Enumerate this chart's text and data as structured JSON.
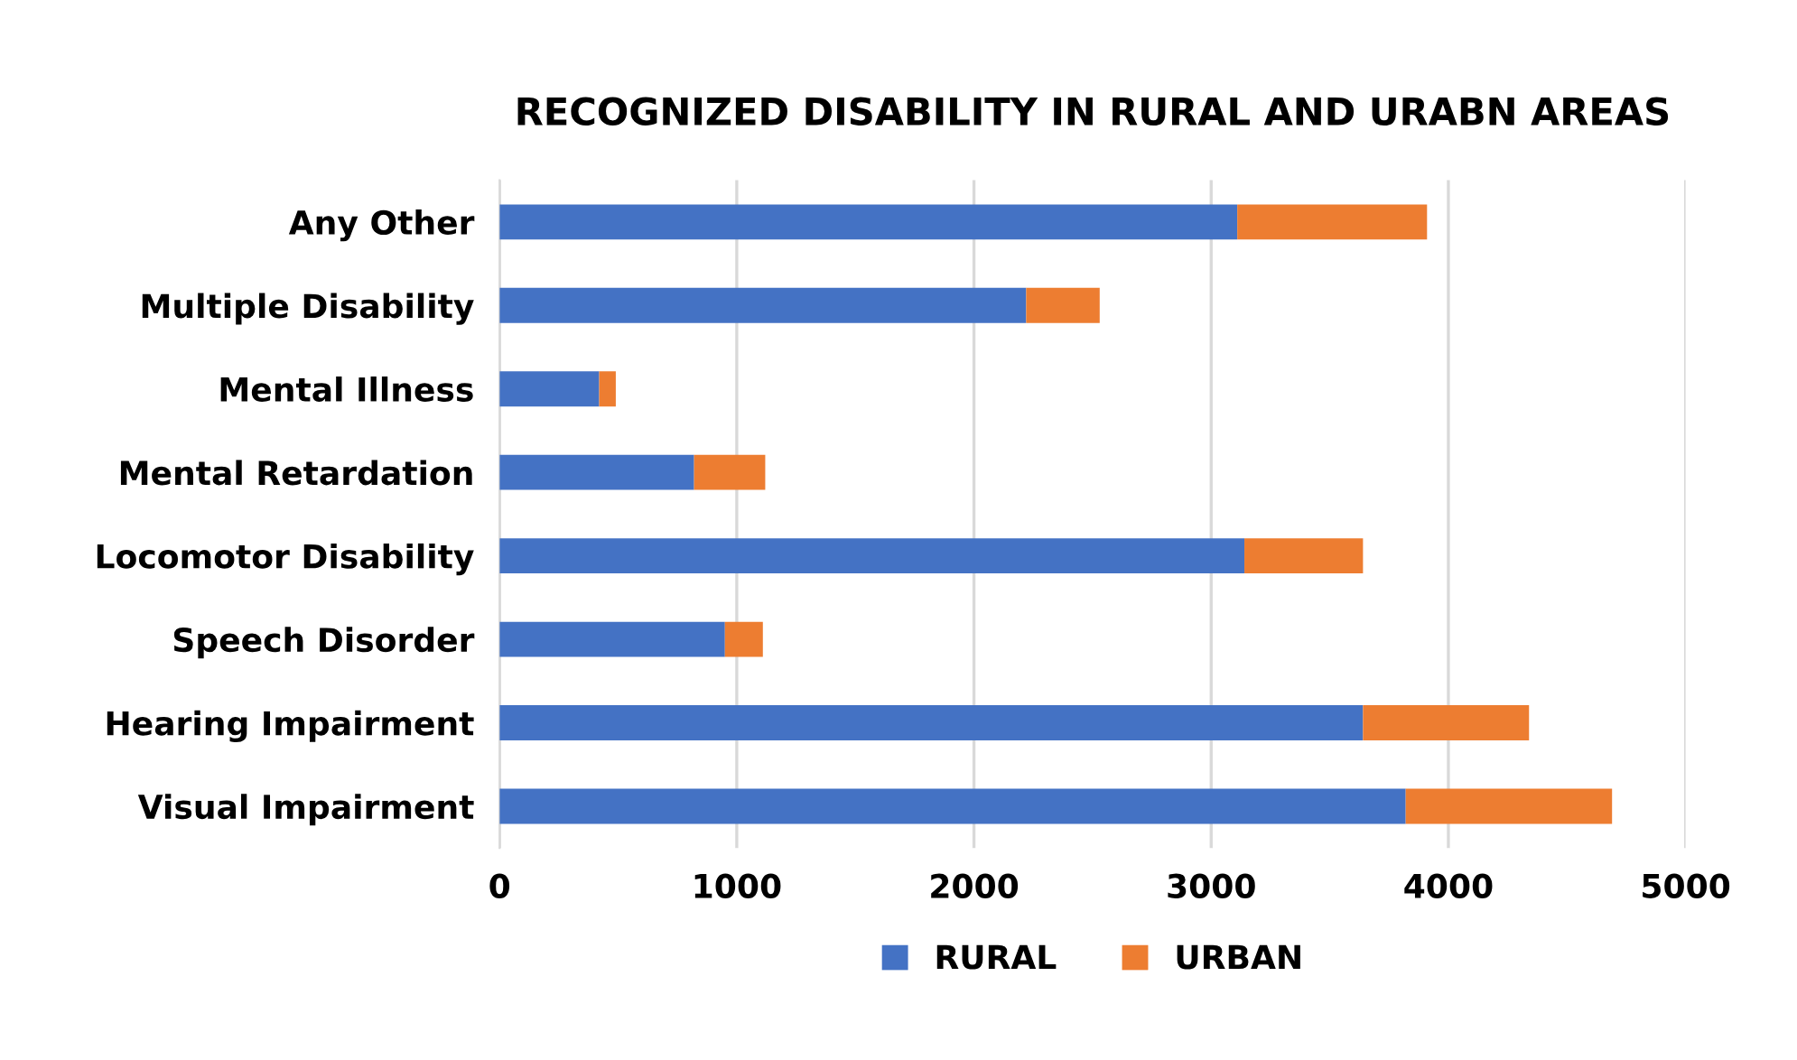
{
  "chart_data": {
    "type": "bar",
    "orientation": "horizontal",
    "stacked": true,
    "title": "RECOGNIZED DISABILITY IN RURAL AND URABN AREAS",
    "categories": [
      "Any Other",
      "Multiple Disability",
      "Mental Illness",
      "Mental Retardation",
      "Locomotor Disability",
      "Speech Disorder",
      "Hearing Impairment",
      "Visual Impairment"
    ],
    "series": [
      {
        "name": "RURAL",
        "color": "#4472c4",
        "values": [
          3110,
          2220,
          420,
          820,
          3140,
          950,
          3640,
          3820
        ]
      },
      {
        "name": "URBAN",
        "color": "#ed7d31",
        "values": [
          800,
          310,
          70,
          300,
          500,
          160,
          700,
          870
        ]
      }
    ],
    "xlim": [
      0,
      5000
    ],
    "xticks": [
      0,
      1000,
      2000,
      3000,
      4000,
      5000
    ],
    "grid": "x",
    "legend": "bottom"
  }
}
